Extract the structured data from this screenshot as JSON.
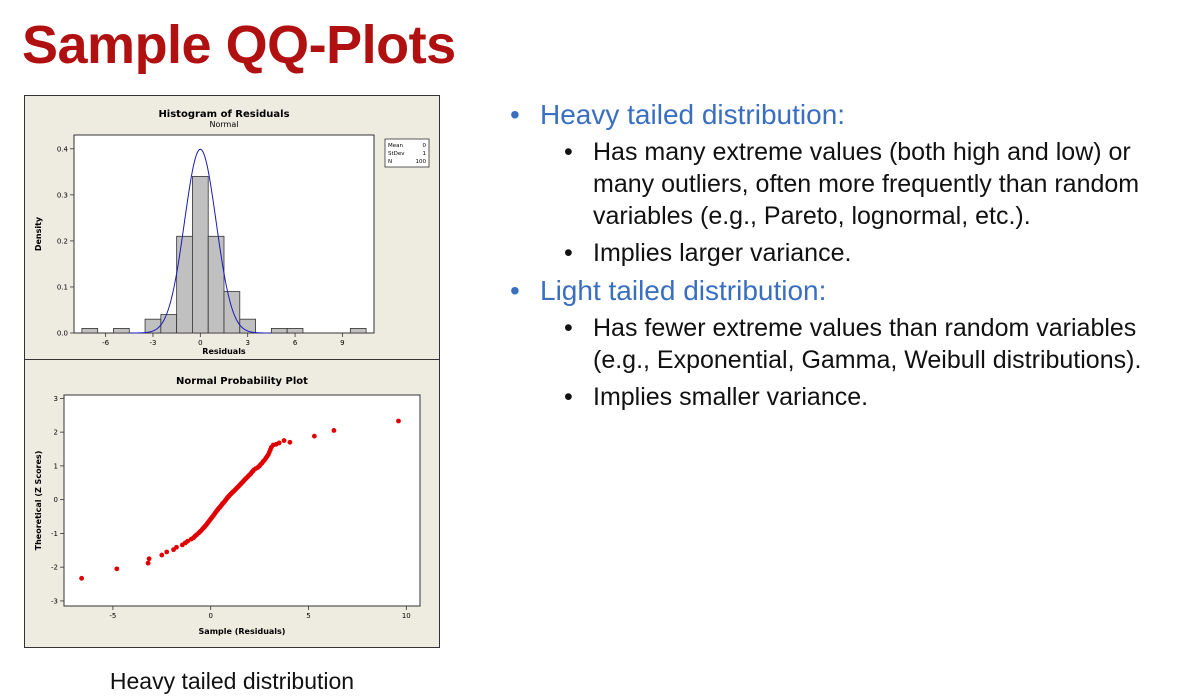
{
  "slide": {
    "title": "Sample QQ-Plots",
    "caption": "Heavy tailed distribution"
  },
  "bullets": [
    {
      "text": "Heavy tailed distribution:",
      "subitems": [
        "Has many extreme values (both high and low) or many outliers, often more frequently than random variables (e.g., Pareto, lognormal, etc.).",
        "Implies larger variance."
      ]
    },
    {
      "text": "Light tailed distribution:",
      "subitems": [
        "Has fewer extreme values than random variables (e.g., Exponential, Gamma, Weibull distributions).",
        "Implies smaller variance."
      ]
    }
  ],
  "colors": {
    "title": "#b01010",
    "bullet_heading": "#3a6fc0",
    "panel_bg": "#eeebe1",
    "bar_fill": "#c0c0c0",
    "normal_curve": "#1a1ab8",
    "points": "#e00000"
  },
  "chart_data": [
    {
      "type": "bar",
      "title": "Histogram of Residuals",
      "subtitle": "Normal",
      "xlabel": "Residuals",
      "ylabel": "Density",
      "xlim": [
        -8,
        11
      ],
      "ylim": [
        0,
        0.43
      ],
      "xticks": [
        -6,
        -3,
        0,
        3,
        6,
        9
      ],
      "yticks": [
        0.0,
        0.1,
        0.2,
        0.3,
        0.4
      ],
      "ytick_labels": [
        "0.0",
        "0.1",
        "0.2",
        "0.3",
        "0.4"
      ],
      "bin_width": 1,
      "bin_centers": [
        -7,
        -5,
        -3,
        -2,
        -1,
        0,
        1,
        2,
        3,
        5,
        6,
        10
      ],
      "values": [
        0.01,
        0.01,
        0.03,
        0.04,
        0.21,
        0.34,
        0.21,
        0.09,
        0.03,
        0.01,
        0.01,
        0.01
      ],
      "overlay": {
        "type": "normal_pdf",
        "mean": 0,
        "sd": 1
      },
      "stats": [
        {
          "label": "Mean",
          "value": "0"
        },
        {
          "label": "StDev",
          "value": "1"
        },
        {
          "label": "N",
          "value": "100"
        }
      ],
      "grid": false
    },
    {
      "type": "scatter",
      "title": "Normal Probability Plot",
      "xlabel": "Sample (Residuals)",
      "ylabel": "Theoretical (Z Scores)",
      "xlim": [
        -7.5,
        10.7
      ],
      "ylim": [
        -3.15,
        3.1
      ],
      "xticks": [
        -5,
        0,
        5,
        10
      ],
      "yticks": [
        -3,
        -2,
        -1,
        0,
        1,
        2,
        3
      ],
      "points": [
        [
          -6.6,
          -2.33
        ],
        [
          -4.8,
          -2.05
        ],
        [
          -3.2,
          -1.88
        ],
        [
          -3.15,
          -1.75
        ],
        [
          -2.5,
          -1.64
        ],
        [
          -2.25,
          -1.55
        ],
        [
          -1.9,
          -1.48
        ],
        [
          -1.75,
          -1.41
        ],
        [
          -1.45,
          -1.34
        ],
        [
          -1.3,
          -1.28
        ],
        [
          -1.18,
          -1.23
        ],
        [
          -1.0,
          -1.17
        ],
        [
          -0.88,
          -1.13
        ],
        [
          -0.8,
          -1.08
        ],
        [
          -0.72,
          -1.04
        ],
        [
          -0.62,
          -0.99
        ],
        [
          -0.55,
          -0.95
        ],
        [
          -0.49,
          -0.92
        ],
        [
          -0.43,
          -0.88
        ],
        [
          -0.38,
          -0.84
        ],
        [
          -0.32,
          -0.81
        ],
        [
          -0.27,
          -0.77
        ],
        [
          -0.22,
          -0.74
        ],
        [
          -0.18,
          -0.71
        ],
        [
          -0.13,
          -0.67
        ],
        [
          -0.09,
          -0.64
        ],
        [
          -0.05,
          -0.61
        ],
        [
          -0.01,
          -0.58
        ],
        [
          0.03,
          -0.55
        ],
        [
          0.07,
          -0.52
        ],
        [
          0.11,
          -0.49
        ],
        [
          0.15,
          -0.46
        ],
        [
          0.19,
          -0.43
        ],
        [
          0.22,
          -0.4
        ],
        [
          0.26,
          -0.37
        ],
        [
          0.3,
          -0.34
        ],
        [
          0.34,
          -0.31
        ],
        [
          0.38,
          -0.28
        ],
        [
          0.42,
          -0.25
        ],
        [
          0.46,
          -0.23
        ],
        [
          0.5,
          -0.2
        ],
        [
          0.54,
          -0.17
        ],
        [
          0.58,
          -0.14
        ],
        [
          0.62,
          -0.11
        ],
        [
          0.66,
          -0.09
        ],
        [
          0.7,
          -0.06
        ],
        [
          0.74,
          -0.03
        ],
        [
          0.78,
          0.0
        ],
        [
          0.82,
          0.03
        ],
        [
          0.86,
          0.06
        ],
        [
          0.9,
          0.09
        ],
        [
          0.94,
          0.11
        ],
        [
          0.98,
          0.14
        ],
        [
          1.03,
          0.17
        ],
        [
          1.08,
          0.2
        ],
        [
          1.13,
          0.23
        ],
        [
          1.18,
          0.25
        ],
        [
          1.23,
          0.28
        ],
        [
          1.28,
          0.31
        ],
        [
          1.33,
          0.34
        ],
        [
          1.38,
          0.37
        ],
        [
          1.43,
          0.4
        ],
        [
          1.48,
          0.43
        ],
        [
          1.53,
          0.46
        ],
        [
          1.58,
          0.49
        ],
        [
          1.63,
          0.52
        ],
        [
          1.68,
          0.55
        ],
        [
          1.72,
          0.58
        ],
        [
          1.77,
          0.61
        ],
        [
          1.82,
          0.64
        ],
        [
          1.88,
          0.67
        ],
        [
          1.94,
          0.71
        ],
        [
          2.0,
          0.74
        ],
        [
          2.05,
          0.77
        ],
        [
          2.1,
          0.81
        ],
        [
          2.15,
          0.84
        ],
        [
          2.2,
          0.88
        ],
        [
          2.3,
          0.92
        ],
        [
          2.4,
          0.95
        ],
        [
          2.48,
          0.99
        ],
        [
          2.55,
          1.04
        ],
        [
          2.62,
          1.08
        ],
        [
          2.68,
          1.13
        ],
        [
          2.75,
          1.17
        ],
        [
          2.82,
          1.23
        ],
        [
          2.88,
          1.28
        ],
        [
          2.95,
          1.34
        ],
        [
          3.0,
          1.41
        ],
        [
          3.05,
          1.48
        ],
        [
          3.1,
          1.55
        ],
        [
          3.2,
          1.62
        ],
        [
          3.35,
          1.64
        ],
        [
          3.5,
          1.68
        ],
        [
          3.75,
          1.75
        ],
        [
          4.05,
          1.7
        ],
        [
          5.3,
          1.88
        ],
        [
          6.3,
          2.05
        ],
        [
          9.6,
          2.33
        ]
      ],
      "grid": false
    }
  ]
}
